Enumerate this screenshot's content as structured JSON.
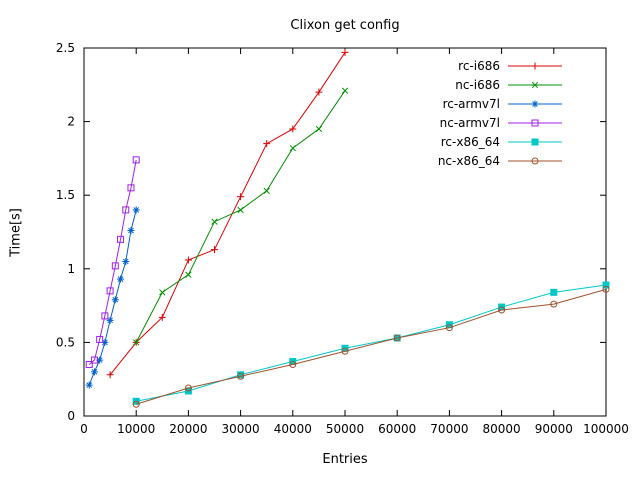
{
  "chart_data": {
    "type": "line",
    "title": "Clixon get config",
    "xlabel": "Entries",
    "ylabel": "Time[s]",
    "xlim": [
      0,
      100000
    ],
    "ylim": [
      0,
      2.5
    ],
    "xticks": [
      0,
      10000,
      20000,
      30000,
      40000,
      50000,
      60000,
      70000,
      80000,
      90000,
      100000
    ],
    "xtick_labels": [
      "0",
      "10000",
      "20000",
      "30000",
      "40000",
      "50000",
      "60000",
      "70000",
      "80000",
      "90000",
      "100000"
    ],
    "yticks": [
      0,
      0.5,
      1,
      1.5,
      2,
      2.5
    ],
    "ytick_labels": [
      "0",
      "0.5",
      "1",
      "1.5",
      "2",
      "2.5"
    ],
    "grid": false,
    "legend_position": "top-right",
    "series": [
      {
        "name": "rc-i686",
        "color": "#dd0000",
        "marker": "plus",
        "points": [
          [
            5000,
            0.28
          ],
          [
            10000,
            0.5
          ],
          [
            15000,
            0.67
          ],
          [
            20000,
            1.06
          ],
          [
            25000,
            1.13
          ],
          [
            30000,
            1.49
          ],
          [
            35000,
            1.85
          ],
          [
            40000,
            1.95
          ],
          [
            45000,
            2.2
          ],
          [
            50000,
            2.47
          ]
        ]
      },
      {
        "name": "nc-i686",
        "color": "#009000",
        "marker": "cross",
        "points": [
          [
            10000,
            0.5
          ],
          [
            15000,
            0.84
          ],
          [
            20000,
            0.96
          ],
          [
            25000,
            1.32
          ],
          [
            30000,
            1.4
          ],
          [
            35000,
            1.53
          ],
          [
            40000,
            1.82
          ],
          [
            45000,
            1.95
          ],
          [
            50000,
            2.21
          ]
        ]
      },
      {
        "name": "rc-armv7l",
        "color": "#0060d0",
        "marker": "asterisk",
        "points": [
          [
            1000,
            0.21
          ],
          [
            2000,
            0.3
          ],
          [
            3000,
            0.38
          ],
          [
            4000,
            0.5
          ],
          [
            5000,
            0.65
          ],
          [
            6000,
            0.79
          ],
          [
            7000,
            0.93
          ],
          [
            8000,
            1.05
          ],
          [
            9000,
            1.26
          ],
          [
            10000,
            1.4
          ]
        ]
      },
      {
        "name": "nc-armv7l",
        "color": "#a020f0",
        "marker": "square-open",
        "points": [
          [
            1000,
            0.35
          ],
          [
            2000,
            0.38
          ],
          [
            3000,
            0.52
          ],
          [
            4000,
            0.68
          ],
          [
            5000,
            0.85
          ],
          [
            6000,
            1.02
          ],
          [
            7000,
            1.2
          ],
          [
            8000,
            1.4
          ],
          [
            9000,
            1.55
          ],
          [
            10000,
            1.74
          ]
        ]
      },
      {
        "name": "rc-x86_64",
        "color": "#00c8c8",
        "marker": "square-filled",
        "points": [
          [
            10000,
            0.1
          ],
          [
            20000,
            0.17
          ],
          [
            30000,
            0.28
          ],
          [
            40000,
            0.37
          ],
          [
            50000,
            0.46
          ],
          [
            60000,
            0.53
          ],
          [
            70000,
            0.62
          ],
          [
            80000,
            0.74
          ],
          [
            90000,
            0.84
          ],
          [
            100000,
            0.89
          ]
        ]
      },
      {
        "name": "nc-x86_64",
        "color": "#a0522d",
        "marker": "circle-open",
        "points": [
          [
            10000,
            0.08
          ],
          [
            20000,
            0.19
          ],
          [
            30000,
            0.27
          ],
          [
            40000,
            0.35
          ],
          [
            50000,
            0.44
          ],
          [
            60000,
            0.53
          ],
          [
            70000,
            0.6
          ],
          [
            80000,
            0.72
          ],
          [
            90000,
            0.76
          ],
          [
            100000,
            0.86
          ]
        ]
      }
    ]
  }
}
